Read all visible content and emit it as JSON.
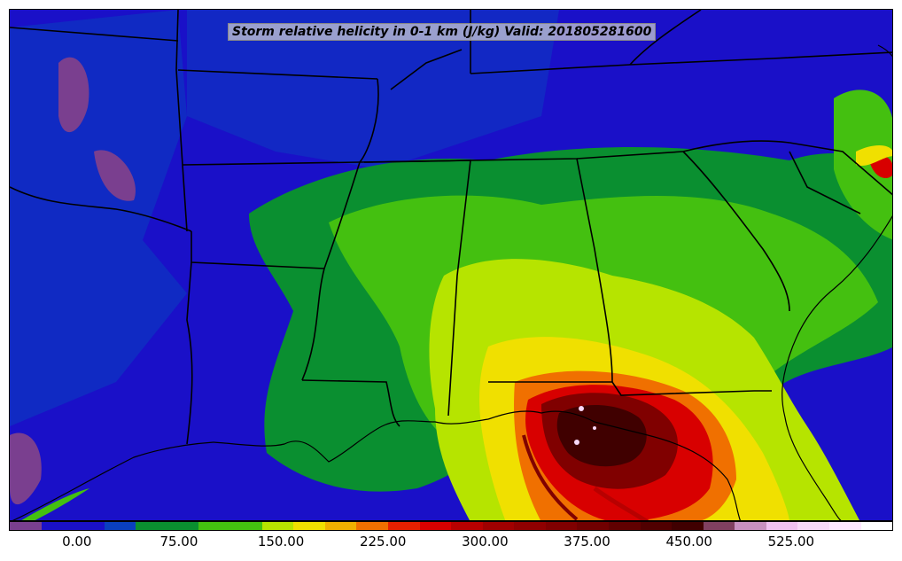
{
  "title": "Storm relative helicity in 0-1 km (J/kg) Valid: 201805281600",
  "colorbar": {
    "colors": [
      "#7a3f8f",
      "#1a10c8",
      "#1a10c8",
      "#0a3fbf",
      "#0a8f30",
      "#0a8f30",
      "#44c010",
      "#44c010",
      "#b6e400",
      "#f0e000",
      "#f0b000",
      "#f07000",
      "#e82000",
      "#d80000",
      "#b80000",
      "#a00000",
      "#900000",
      "#800000",
      "#700000",
      "#600000",
      "#500000",
      "#400000",
      "#804060",
      "#c890c0",
      "#f0c0f0",
      "#f8d8f8",
      "#ffe8ff",
      "#ffffff"
    ],
    "tick_labels": [
      "0.00",
      "75.00",
      "150.00",
      "225.00",
      "300.00",
      "375.00",
      "450.00",
      "525.00"
    ],
    "tick_values": [
      0,
      75,
      150,
      225,
      300,
      375,
      450,
      525
    ],
    "min": -50,
    "max": 600
  },
  "map": {
    "region": "southeastern-united-states",
    "field": "storm-relative-helicity-0-1km",
    "colors": {
      "background": "#1a10c8",
      "low_purple": "#7a3f8f",
      "blue2": "#0a3fbf",
      "dark_green": "#0a8f30",
      "green": "#44c010",
      "yellow_green": "#b6e400",
      "yellow": "#f0e000",
      "orange": "#f07000",
      "red": "#d80000",
      "dark_red": "#800000",
      "maroon": "#400000",
      "pink": "#f8d8f8",
      "boundary": "#000000"
    }
  }
}
